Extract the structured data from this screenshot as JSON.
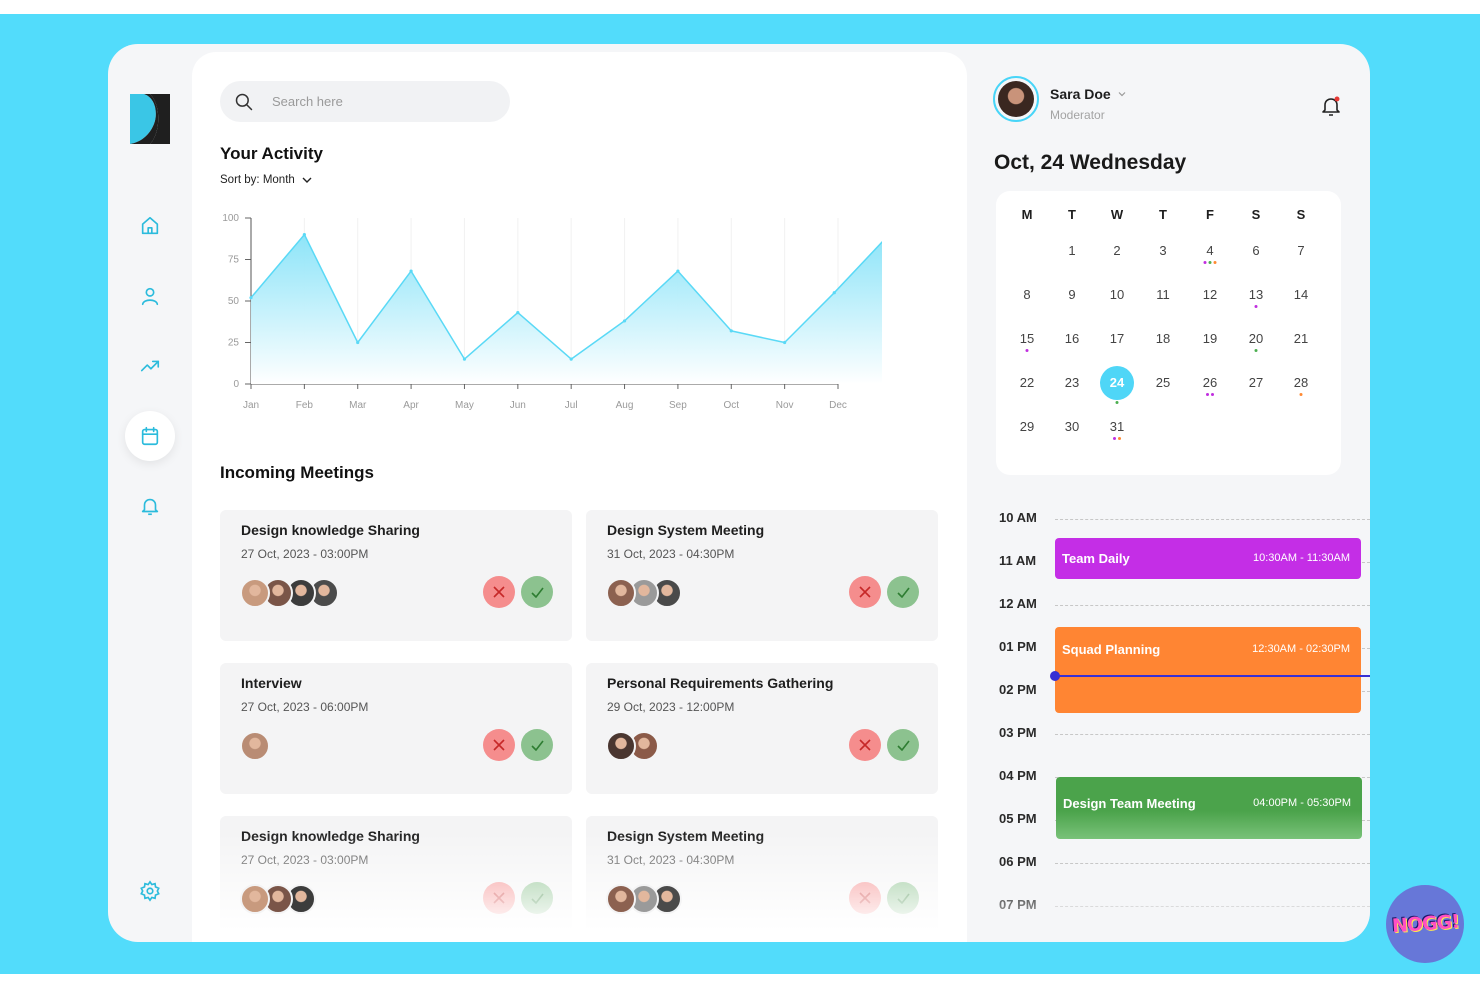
{
  "search": {
    "placeholder": "Search here"
  },
  "activity": {
    "title": "Your Activity",
    "sort_label": "Sort by: Month"
  },
  "chart_data": {
    "type": "area",
    "title": "",
    "xlabel": "",
    "ylabel": "",
    "categories": [
      "Jan",
      "Feb",
      "Mar",
      "Apr",
      "May",
      "Jun",
      "Jul",
      "Aug",
      "Sep",
      "Oct",
      "Nov",
      "Dec"
    ],
    "values": [
      52,
      90,
      25,
      68,
      15,
      43,
      15,
      38,
      68,
      32,
      25,
      55,
      88
    ],
    "x": [
      0,
      1,
      2,
      3,
      4,
      5,
      6,
      7,
      8,
      9,
      10,
      10.93,
      11.9
    ],
    "yticks": [
      0,
      25,
      50,
      75,
      100
    ],
    "ylim": [
      0,
      100
    ],
    "grid": true,
    "colors": {
      "line": "#5ad9f6",
      "fill_top": "#88e3f8",
      "fill_bottom": "#ffffff"
    }
  },
  "meetings": {
    "title": "Incoming Meetings",
    "items": [
      {
        "title": "Design knowledge Sharing",
        "datetime": "27 Oct, 2023 - 03:00PM",
        "attendees": [
          "#c89a7e",
          "#7a5548",
          "#3c3c3c",
          "#4b4b4b"
        ]
      },
      {
        "title": "Design System Meeting",
        "datetime": "31 Oct, 2023 - 04:30PM",
        "attendees": [
          "#8c6150",
          "#9a9a9a",
          "#4a4a4a"
        ]
      },
      {
        "title": "Interview",
        "datetime": "27 Oct, 2023 - 06:00PM",
        "attendees": [
          "#b98c74"
        ]
      },
      {
        "title": "Personal Requirements Gathering",
        "datetime": "29 Oct, 2023 - 12:00PM",
        "attendees": [
          "#4a3630",
          "#8b5a48"
        ]
      },
      {
        "title": "Design knowledge Sharing",
        "datetime": "27 Oct, 2023 - 03:00PM",
        "attendees": [
          "#c89a7e",
          "#7a5548",
          "#3c3c3c"
        ]
      },
      {
        "title": "Design System Meeting",
        "datetime": "31 Oct, 2023 - 04:30PM",
        "attendees": [
          "#8c6150",
          "#9a9a9a",
          "#4a4a4a"
        ]
      }
    ]
  },
  "user": {
    "name": "Sara Doe",
    "role": "Moderator"
  },
  "calendar": {
    "date_heading": "Oct, 24 Wednesday",
    "weekdays": [
      "M",
      "T",
      "W",
      "T",
      "F",
      "S",
      "S"
    ],
    "today": 24,
    "rows": [
      [
        null,
        1,
        2,
        3,
        4,
        6,
        7
      ],
      [
        8,
        9,
        10,
        11,
        12,
        13,
        14
      ],
      [
        15,
        16,
        17,
        18,
        19,
        20,
        21
      ],
      [
        22,
        23,
        24,
        25,
        26,
        27,
        28
      ],
      [
        29,
        30,
        31,
        null,
        null,
        null,
        null
      ]
    ],
    "event_dots": {
      "4": [
        "#c12fe0",
        "#4caf50",
        "#ff8a33"
      ],
      "13": [
        "#c12fe0"
      ],
      "15": [
        "#c12fe0"
      ],
      "20": [
        "#4caf50"
      ],
      "24": [
        "#4caf50"
      ],
      "26": [
        "#c12fe0",
        "#c12fe0"
      ],
      "28": [
        "#ff8a33"
      ],
      "31": [
        "#c12fe0",
        "#ff8a33"
      ]
    }
  },
  "timeline": {
    "hours": [
      "10 AM",
      "11 AM",
      "12 AM",
      "01 PM",
      "02 PM",
      "03 PM",
      "04 PM",
      "05 PM",
      "06 PM",
      "07 PM"
    ],
    "events": [
      {
        "name": "Team Daily",
        "time": "10:30AM - 11:30AM",
        "color": "#c42ee6"
      },
      {
        "name": "Squad Planning",
        "time": "12:30AM - 02:30PM",
        "color": "#ff8533"
      },
      {
        "name": "Design Team Meeting",
        "time": "04:00PM - 05:30PM",
        "color": "#47a447"
      }
    ]
  },
  "badge": {
    "text": "NOGG!"
  },
  "colors": {
    "backdrop": "#52dcfb",
    "accent": "#4fd6f7",
    "brand": "#3ac6e6"
  }
}
